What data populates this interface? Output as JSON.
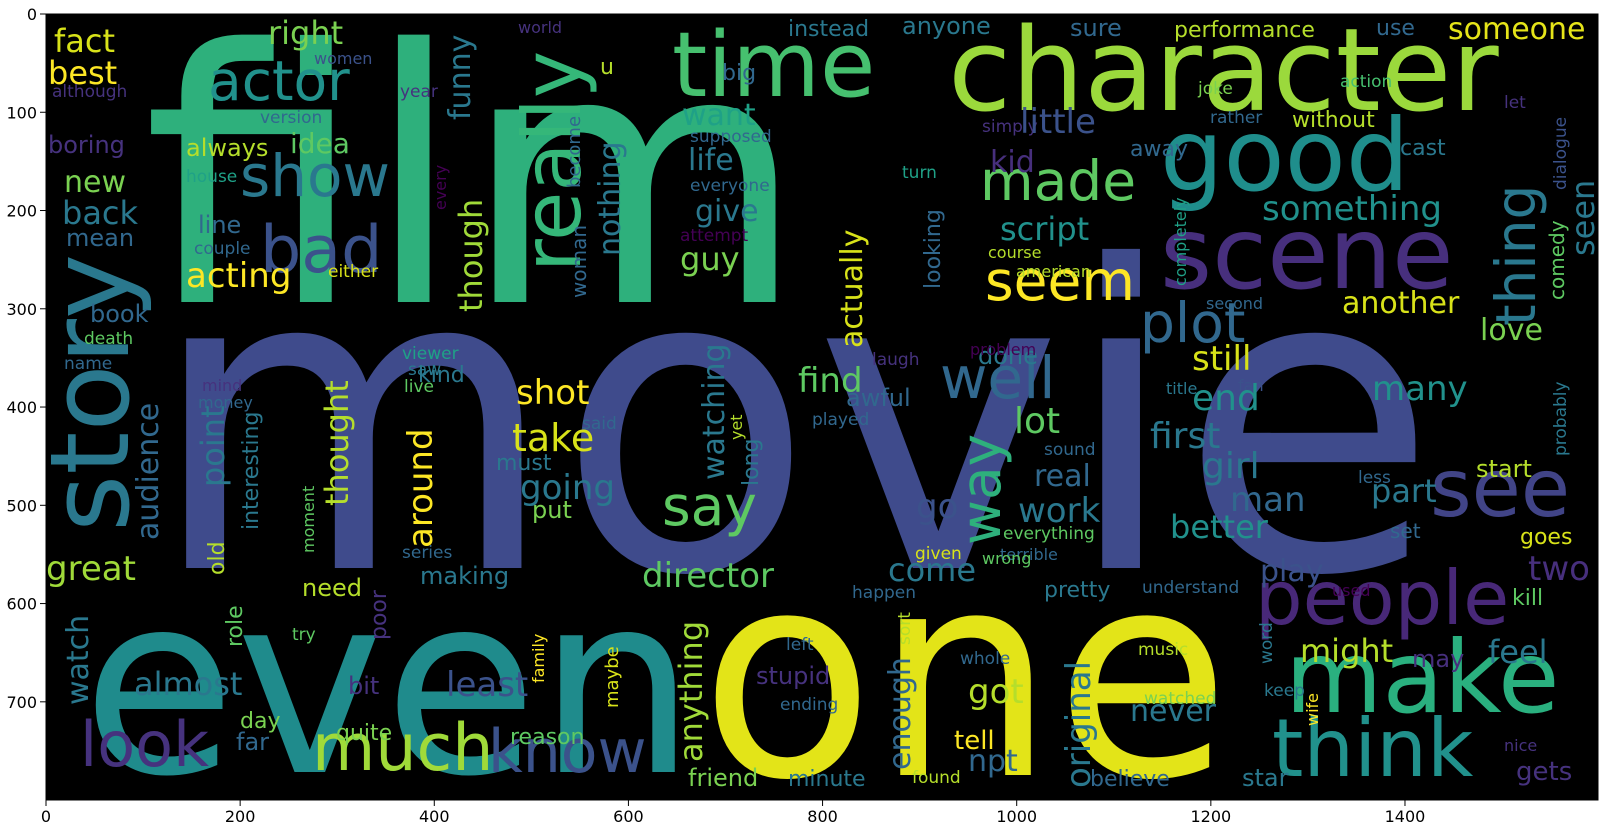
{
  "chart_data": {
    "type": "wordcloud",
    "x_ticks": [
      "0",
      "200",
      "400",
      "600",
      "800",
      "1000",
      "1200",
      "1400"
    ],
    "y_ticks": [
      "0",
      "100",
      "200",
      "300",
      "400",
      "500",
      "600",
      "700"
    ],
    "colors": {
      "background": "#000000",
      "palette": [
        "#440154",
        "#46327e",
        "#365c8d",
        "#277f8e",
        "#1fa187",
        "#4ac16d",
        "#a0da39",
        "#fde725"
      ]
    },
    "words": [
      {
        "text": "film",
        "color": "#2eb07c",
        "weight": 1.0
      },
      {
        "text": "movie",
        "color": "#3f4b8c",
        "weight": 1.0
      },
      {
        "text": "even",
        "color": "#1f8b8c",
        "weight": 0.85
      },
      {
        "text": "one",
        "color": "#e3e418",
        "weight": 0.85
      },
      {
        "text": "character",
        "color": "#9bd93c",
        "weight": 0.6
      },
      {
        "text": "time",
        "color": "#46c06f",
        "weight": 0.5
      },
      {
        "text": "good",
        "color": "#1f8e8c",
        "weight": 0.5
      },
      {
        "text": "scene",
        "color": "#472f7d",
        "weight": 0.5
      },
      {
        "text": "make",
        "color": "#2ab07f",
        "weight": 0.5
      },
      {
        "text": "story",
        "color": "#2a788e",
        "weight": 0.5
      },
      {
        "text": "really",
        "color": "#35b779",
        "weight": 0.4
      },
      {
        "text": "see",
        "color": "#414487",
        "weight": 0.4
      },
      {
        "text": "think",
        "color": "#21918c",
        "weight": 0.35
      },
      {
        "text": "people",
        "color": "#482878",
        "weight": 0.35
      },
      {
        "text": "much",
        "color": "#a0da39",
        "weight": 0.3
      },
      {
        "text": "know",
        "color": "#3b528b",
        "weight": 0.3
      },
      {
        "text": "look",
        "color": "#46327e",
        "weight": 0.3
      },
      {
        "text": "bad",
        "color": "#3b528b",
        "weight": 0.3
      },
      {
        "text": "show",
        "color": "#2a788e",
        "weight": 0.3
      },
      {
        "text": "made",
        "color": "#5ec962",
        "weight": 0.3
      },
      {
        "text": "actor",
        "color": "#21918c",
        "weight": 0.25
      },
      {
        "text": "seem",
        "color": "#fde725",
        "weight": 0.25
      },
      {
        "text": "plot",
        "color": "#31688e",
        "weight": 0.25
      },
      {
        "text": "well",
        "color": "#31688e",
        "weight": 0.25
      },
      {
        "text": "way",
        "color": "#2eb07c",
        "weight": 0.25
      },
      {
        "text": "say",
        "color": "#5ec962",
        "weight": 0.25
      },
      {
        "text": "thing",
        "color": "#2a788e",
        "weight": 0.25
      },
      {
        "text": "fact",
        "color": "#d8e219",
        "weight": 0.15
      },
      {
        "text": "best",
        "color": "#fde725",
        "weight": 0.15
      },
      {
        "text": "right",
        "color": "#7ad151",
        "weight": 0.15
      },
      {
        "text": "funny",
        "color": "#2a788e",
        "weight": 0.15
      },
      {
        "text": "women",
        "color": "#3b528b",
        "weight": 0.08
      },
      {
        "text": "world",
        "color": "#46327e",
        "weight": 0.08
      },
      {
        "text": "become",
        "color": "#31688e",
        "weight": 0.1
      },
      {
        "text": "u",
        "color": "#b5de2b",
        "weight": 0.1
      },
      {
        "text": "instead",
        "color": "#2a788e",
        "weight": 0.1
      },
      {
        "text": "anyone",
        "color": "#2a788e",
        "weight": 0.12
      },
      {
        "text": "sure",
        "color": "#31688e",
        "weight": 0.12
      },
      {
        "text": "performance",
        "color": "#b5de2b",
        "weight": 0.12
      },
      {
        "text": "use",
        "color": "#31688e",
        "weight": 0.12
      },
      {
        "text": "someone",
        "color": "#e5e419",
        "weight": 0.15
      },
      {
        "text": "although",
        "color": "#46327e",
        "weight": 0.08
      },
      {
        "text": "version",
        "color": "#31688e",
        "weight": 0.08
      },
      {
        "text": "year",
        "color": "#46327e",
        "weight": 0.08
      },
      {
        "text": "big",
        "color": "#31688e",
        "weight": 0.1
      },
      {
        "text": "want",
        "color": "#1fa187",
        "weight": 0.15
      },
      {
        "text": "supposed",
        "color": "#31688e",
        "weight": 0.08
      },
      {
        "text": "simply",
        "color": "#46327e",
        "weight": 0.08
      },
      {
        "text": "little",
        "color": "#3b528b",
        "weight": 0.15
      },
      {
        "text": "joke",
        "color": "#7ad151",
        "weight": 0.08
      },
      {
        "text": "rather",
        "color": "#31688e",
        "weight": 0.08
      },
      {
        "text": "without",
        "color": "#b5de2b",
        "weight": 0.1
      },
      {
        "text": "action",
        "color": "#46c06f",
        "weight": 0.08
      },
      {
        "text": "let",
        "color": "#46327e",
        "weight": 0.08
      },
      {
        "text": "boring",
        "color": "#46327e",
        "weight": 0.12
      },
      {
        "text": "always",
        "color": "#b5de2b",
        "weight": 0.12
      },
      {
        "text": "idea",
        "color": "#5ec962",
        "weight": 0.15
      },
      {
        "text": "life",
        "color": "#2a788e",
        "weight": 0.15
      },
      {
        "text": "kid",
        "color": "#472f7d",
        "weight": 0.15
      },
      {
        "text": "away",
        "color": "#31688e",
        "weight": 0.12
      },
      {
        "text": "cast",
        "color": "#2a788e",
        "weight": 0.12
      },
      {
        "text": "dialogue",
        "color": "#3b528b",
        "weight": 0.08
      },
      {
        "text": "house",
        "color": "#1fa187",
        "weight": 0.08
      },
      {
        "text": "every",
        "color": "#440154",
        "weight": 0.08
      },
      {
        "text": "everyone",
        "color": "#31688e",
        "weight": 0.08
      },
      {
        "text": "turn",
        "color": "#1fa187",
        "weight": 0.08
      },
      {
        "text": "new",
        "color": "#7ad151",
        "weight": 0.15
      },
      {
        "text": "back",
        "color": "#2a788e",
        "weight": 0.15
      },
      {
        "text": "nothing",
        "color": "#2a788e",
        "weight": 0.15
      },
      {
        "text": "woman",
        "color": "#31688e",
        "weight": 0.1
      },
      {
        "text": "though",
        "color": "#a0da39",
        "weight": 0.15
      },
      {
        "text": "give",
        "color": "#2a788e",
        "weight": 0.15
      },
      {
        "text": "actually",
        "color": "#d8e219",
        "weight": 0.15
      },
      {
        "text": "something",
        "color": "#21918c",
        "weight": 0.15
      },
      {
        "text": "completely",
        "color": "#1fa187",
        "weight": 0.08
      },
      {
        "text": "comedy",
        "color": "#5ec962",
        "weight": 0.1
      },
      {
        "text": "seen",
        "color": "#2a788e",
        "weight": 0.15
      },
      {
        "text": "line",
        "color": "#31688e",
        "weight": 0.1
      },
      {
        "text": "mean",
        "color": "#31688e",
        "weight": 0.1
      },
      {
        "text": "couple",
        "color": "#31688e",
        "weight": 0.08
      },
      {
        "text": "attempt",
        "color": "#440154",
        "weight": 0.08
      },
      {
        "text": "script",
        "color": "#21918c",
        "weight": 0.15
      },
      {
        "text": "course",
        "color": "#b5de2b",
        "weight": 0.08
      },
      {
        "text": "american",
        "color": "#b5de2b",
        "weight": 0.08
      },
      {
        "text": "looking",
        "color": "#31688e",
        "weight": 0.1
      },
      {
        "text": "acting",
        "color": "#fde725",
        "weight": 0.15
      },
      {
        "text": "either",
        "color": "#d8e219",
        "weight": 0.08
      },
      {
        "text": "guy",
        "color": "#7ad151",
        "weight": 0.15
      },
      {
        "text": "trying",
        "color": "#2a788e",
        "weight": 0.12
      },
      {
        "text": "another",
        "color": "#d8e219",
        "weight": 0.15
      },
      {
        "text": "second",
        "color": "#31688e",
        "weight": 0.08
      },
      {
        "text": "book",
        "color": "#31688e",
        "weight": 0.12
      },
      {
        "text": "death",
        "color": "#5ec962",
        "weight": 0.08
      },
      {
        "text": "name",
        "color": "#31688e",
        "weight": 0.08
      },
      {
        "text": "viewer",
        "color": "#1fa187",
        "weight": 0.08
      },
      {
        "text": "kind",
        "color": "#2a788e",
        "weight": 0.1
      },
      {
        "text": "laugh",
        "color": "#46327e",
        "weight": 0.08
      },
      {
        "text": "done",
        "color": "#2a788e",
        "weight": 0.12
      },
      {
        "text": "love",
        "color": "#7ad151",
        "weight": 0.15
      },
      {
        "text": "problem",
        "color": "#440154",
        "weight": 0.08
      },
      {
        "text": "saw",
        "color": "#2a788e",
        "weight": 0.08
      },
      {
        "text": "live",
        "color": "#5ec962",
        "weight": 0.08
      },
      {
        "text": "mind",
        "color": "#46327e",
        "weight": 0.08
      },
      {
        "text": "money",
        "color": "#31688e",
        "weight": 0.08
      },
      {
        "text": "audience",
        "color": "#31688e",
        "weight": 0.12
      },
      {
        "text": "find",
        "color": "#5ec962",
        "weight": 0.15
      },
      {
        "text": "still",
        "color": "#d8e219",
        "weight": 0.15
      },
      {
        "text": "title",
        "color": "#2a788e",
        "weight": 0.08
      },
      {
        "text": "fan",
        "color": "#3b528b",
        "weight": 0.08
      },
      {
        "text": "probably",
        "color": "#2a788e",
        "weight": 0.08
      },
      {
        "text": "shot",
        "color": "#fde725",
        "weight": 0.15
      },
      {
        "text": "awful",
        "color": "#31688e",
        "weight": 0.12
      },
      {
        "text": "played",
        "color": "#31688e",
        "weight": 0.08
      },
      {
        "text": "end",
        "color": "#21918c",
        "weight": 0.15
      },
      {
        "text": "many",
        "color": "#21918c",
        "weight": 0.15
      },
      {
        "text": "point",
        "color": "#2a788e",
        "weight": 0.15
      },
      {
        "text": "interesting",
        "color": "#2a788e",
        "weight": 0.1
      },
      {
        "text": "thought",
        "color": "#b5de2b",
        "weight": 0.15
      },
      {
        "text": "around",
        "color": "#fde725",
        "weight": 0.15
      },
      {
        "text": "take",
        "color": "#d8e219",
        "weight": 0.15
      },
      {
        "text": "said",
        "color": "#31688e",
        "weight": 0.08
      },
      {
        "text": "yet",
        "color": "#b5de2b",
        "weight": 0.08
      },
      {
        "text": "long",
        "color": "#2a788e",
        "weight": 0.1
      },
      {
        "text": "watching",
        "color": "#2a788e",
        "weight": 0.15
      },
      {
        "text": "lot",
        "color": "#5ec962",
        "weight": 0.15
      },
      {
        "text": "first",
        "color": "#2a788e",
        "weight": 0.15
      },
      {
        "text": "sound",
        "color": "#31688e",
        "weight": 0.08
      },
      {
        "text": "real",
        "color": "#31688e",
        "weight": 0.15
      },
      {
        "text": "girl",
        "color": "#2a788e",
        "weight": 0.15
      },
      {
        "text": "less",
        "color": "#31688e",
        "weight": 0.08
      },
      {
        "text": "start",
        "color": "#b5de2b",
        "weight": 0.12
      },
      {
        "text": "must",
        "color": "#2a788e",
        "weight": 0.1
      },
      {
        "text": "going",
        "color": "#2a788e",
        "weight": 0.15
      },
      {
        "text": "old",
        "color": "#b5de2b",
        "weight": 0.1
      },
      {
        "text": "moment",
        "color": "#5ec962",
        "weight": 0.08
      },
      {
        "text": "put",
        "color": "#7ad151",
        "weight": 0.12
      },
      {
        "text": "go",
        "color": "#3b528b",
        "weight": 0.15
      },
      {
        "text": "work",
        "color": "#2a788e",
        "weight": 0.15
      },
      {
        "text": "man",
        "color": "#31688e",
        "weight": 0.15
      },
      {
        "text": "part",
        "color": "#2a788e",
        "weight": 0.15
      },
      {
        "text": "great",
        "color": "#a0da39",
        "weight": 0.15
      },
      {
        "text": "everything",
        "color": "#5ec962",
        "weight": 0.08
      },
      {
        "text": "better",
        "color": "#21918c",
        "weight": 0.15
      },
      {
        "text": "set",
        "color": "#31688e",
        "weight": 0.1
      },
      {
        "text": "goes",
        "color": "#d8e219",
        "weight": 0.12
      },
      {
        "text": "series",
        "color": "#31688e",
        "weight": 0.08
      },
      {
        "text": "terrible",
        "color": "#31688e",
        "weight": 0.08
      },
      {
        "text": "given",
        "color": "#d8e219",
        "weight": 0.08
      },
      {
        "text": "making",
        "color": "#2a788e",
        "weight": 0.12
      },
      {
        "text": "director",
        "color": "#5ec962",
        "weight": 0.15
      },
      {
        "text": "come",
        "color": "#2a788e",
        "weight": 0.15
      },
      {
        "text": "wrong",
        "color": "#5ec962",
        "weight": 0.08
      },
      {
        "text": "two",
        "color": "#472f7d",
        "weight": 0.15
      },
      {
        "text": "need",
        "color": "#b5de2b",
        "weight": 0.12
      },
      {
        "text": "play",
        "color": "#3b528b",
        "weight": 0.15
      },
      {
        "text": "happen",
        "color": "#31688e",
        "weight": 0.08
      },
      {
        "text": "pretty",
        "color": "#2a788e",
        "weight": 0.12
      },
      {
        "text": "understand",
        "color": "#31688e",
        "weight": 0.08
      },
      {
        "text": "used",
        "color": "#440154",
        "weight": 0.08
      },
      {
        "text": "kill",
        "color": "#5ec962",
        "weight": 0.12
      },
      {
        "text": "watch",
        "color": "#2a788e",
        "weight": 0.15
      },
      {
        "text": "role",
        "color": "#5ec962",
        "weight": 0.1
      },
      {
        "text": "try",
        "color": "#5ec962",
        "weight": 0.08
      },
      {
        "text": "poor",
        "color": "#46327e",
        "weight": 0.1
      },
      {
        "text": "family",
        "color": "#fde725",
        "weight": 0.08
      },
      {
        "text": "anything",
        "color": "#a0da39",
        "weight": 0.15
      },
      {
        "text": "sort",
        "color": "#b5de2b",
        "weight": 0.08
      },
      {
        "text": "original",
        "color": "#2a788e",
        "weight": 0.15
      },
      {
        "text": "word",
        "color": "#2a788e",
        "weight": 0.08
      },
      {
        "text": "might",
        "color": "#b5de2b",
        "weight": 0.15
      },
      {
        "text": "feel",
        "color": "#2a788e",
        "weight": 0.15
      },
      {
        "text": "left",
        "color": "#31688e",
        "weight": 0.08
      },
      {
        "text": "whole",
        "color": "#31688e",
        "weight": 0.08
      },
      {
        "text": "music",
        "color": "#b5de2b",
        "weight": 0.08
      },
      {
        "text": "may",
        "color": "#472f7d",
        "weight": 0.12
      },
      {
        "text": "almost",
        "color": "#2a788e",
        "weight": 0.15
      },
      {
        "text": "maybe",
        "color": "#d8e219",
        "weight": 0.08
      },
      {
        "text": "stupid",
        "color": "#46327e",
        "weight": 0.12
      },
      {
        "text": "enough",
        "color": "#31688e",
        "weight": 0.15
      },
      {
        "text": "got",
        "color": "#b5de2b",
        "weight": 0.15
      },
      {
        "text": "least",
        "color": "#3b528b",
        "weight": 0.15
      },
      {
        "text": "bit",
        "color": "#46327e",
        "weight": 0.12
      },
      {
        "text": "ending",
        "color": "#31688e",
        "weight": 0.08
      },
      {
        "text": "watched",
        "color": "#7ad151",
        "weight": 0.08
      },
      {
        "text": "keep",
        "color": "#2a788e",
        "weight": 0.08
      },
      {
        "text": "never",
        "color": "#2a788e",
        "weight": 0.15
      },
      {
        "text": "wife",
        "color": "#fde725",
        "weight": 0.08
      },
      {
        "text": "day",
        "color": "#7ad151",
        "weight": 0.1
      },
      {
        "text": "quite",
        "color": "#7ad151",
        "weight": 0.12
      },
      {
        "text": "tell",
        "color": "#fde725",
        "weight": 0.12
      },
      {
        "text": "nice",
        "color": "#46327e",
        "weight": 0.08
      },
      {
        "text": "gets",
        "color": "#46327e",
        "weight": 0.15
      },
      {
        "text": "far",
        "color": "#31688e",
        "weight": 0.12
      },
      {
        "text": "reason",
        "color": "#5ec962",
        "weight": 0.12
      },
      {
        "text": "npt",
        "color": "#31688e",
        "weight": 0.15
      },
      {
        "text": "friend",
        "color": "#7ad151",
        "weight": 0.12
      },
      {
        "text": "minute",
        "color": "#2a788e",
        "weight": 0.12
      },
      {
        "text": "found",
        "color": "#b5de2b",
        "weight": 0.08
      },
      {
        "text": "believe",
        "color": "#31688e",
        "weight": 0.12
      },
      {
        "text": "star",
        "color": "#2a788e",
        "weight": 0.12
      }
    ]
  }
}
